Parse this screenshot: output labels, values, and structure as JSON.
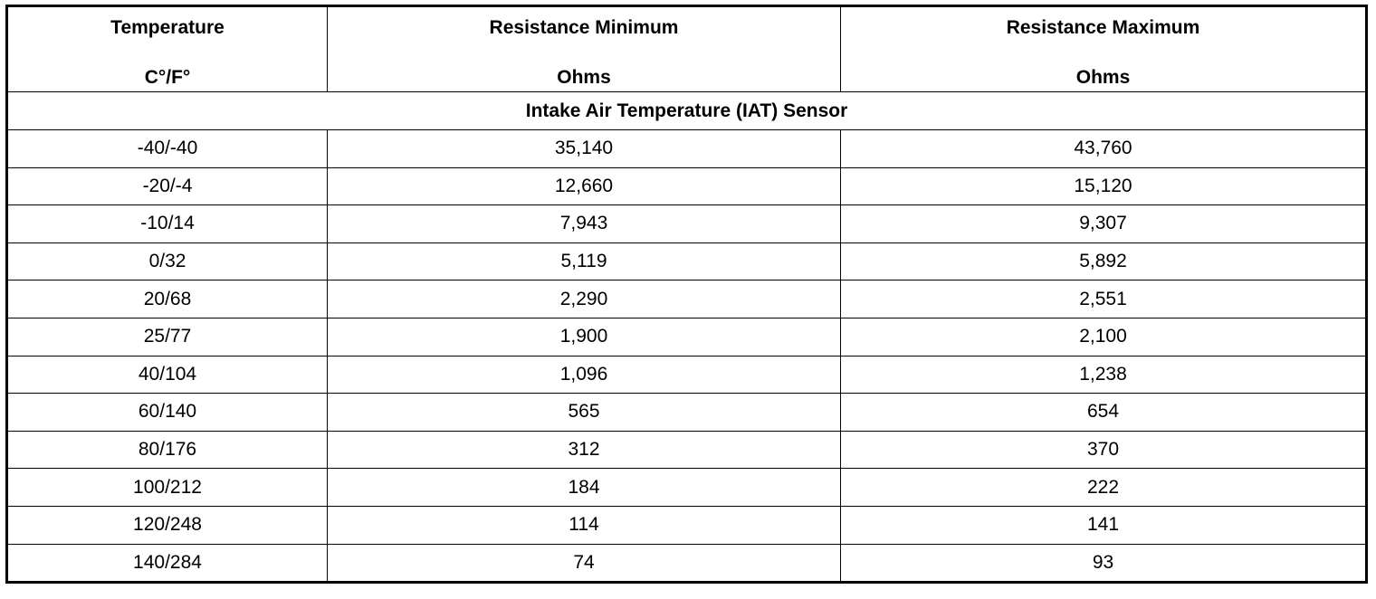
{
  "table": {
    "header": [
      [
        "Temperature",
        "C°/F°"
      ],
      [
        "Resistance Minimum",
        "Ohms"
      ],
      [
        "Resistance Maximum",
        "Ohms"
      ]
    ],
    "section": "Intake Air Temperature (IAT) Sensor",
    "rows": [
      [
        "-40/-40",
        "35,140",
        "43,760"
      ],
      [
        "-20/-4",
        "12,660",
        "15,120"
      ],
      [
        "-10/14",
        "7,943",
        "9,307"
      ],
      [
        "0/32",
        "5,119",
        "5,892"
      ],
      [
        "20/68",
        "2,290",
        "2,551"
      ],
      [
        "25/77",
        "1,900",
        "2,100"
      ],
      [
        "40/104",
        "1,096",
        "1,238"
      ],
      [
        "60/140",
        "565",
        "654"
      ],
      [
        "80/176",
        "312",
        "370"
      ],
      [
        "100/212",
        "184",
        "222"
      ],
      [
        "120/248",
        "114",
        "141"
      ],
      [
        "140/284",
        "74",
        "93"
      ]
    ]
  }
}
